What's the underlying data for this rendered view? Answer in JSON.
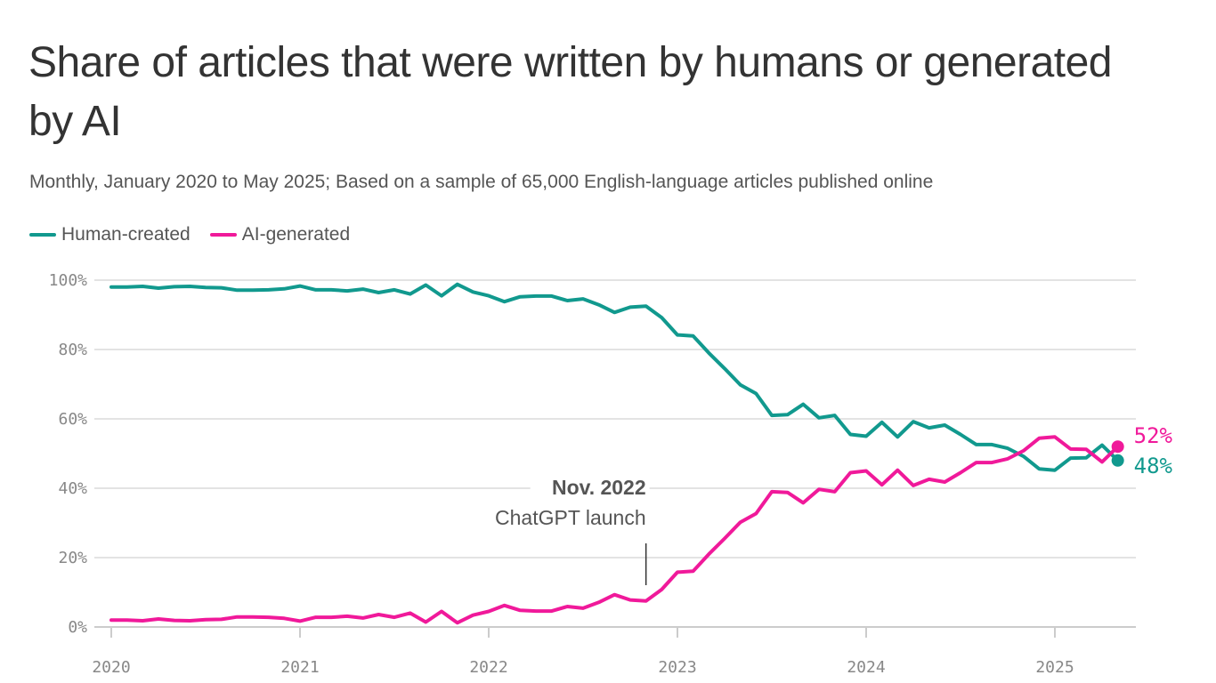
{
  "chart_data": {
    "type": "line",
    "title": "Share of articles that were written by humans or generated by AI",
    "subtitle": "Monthly, January 2020 to May 2025; Based on a sample of 65,000 English-language articles published online",
    "start": "2020-01",
    "end": "2025-05",
    "x_ticks": [
      "2020",
      "2021",
      "2022",
      "2023",
      "2024",
      "2025"
    ],
    "y_ticks": [
      "0%",
      "20%",
      "40%",
      "60%",
      "80%",
      "100%"
    ],
    "ylim": [
      0,
      100
    ],
    "grid": "horizontal",
    "legend_placement": "top-left",
    "series": [
      {
        "name": "Human-created",
        "color": "#11998e",
        "end_label": "48%",
        "values": [
          98,
          98,
          98.2,
          97.7,
          98.1,
          98.2,
          97.9,
          97.8,
          97.1,
          97.1,
          97.2,
          97.5,
          98.3,
          97.2,
          97.2,
          96.9,
          97.4,
          96.4,
          97.2,
          96,
          98.6,
          95.5,
          98.8,
          96.6,
          95.5,
          93.8,
          95.2,
          95.4,
          95.4,
          94.1,
          94.6,
          92.9,
          90.7,
          92.2,
          92.5,
          89.2,
          84.2,
          83.9,
          79,
          74.5,
          69.8,
          67.3,
          61,
          61.2,
          64.2,
          60.3,
          61,
          55.5,
          55,
          59,
          54.8,
          59.2,
          57.4,
          58.2,
          55.5,
          52.6,
          52.6,
          51.5,
          49.2,
          45.6,
          45.2,
          48.7,
          48.8,
          52.4,
          48
        ]
      },
      {
        "name": "AI-generated",
        "color": "#f0199a",
        "end_label": "52%",
        "values": [
          2,
          2,
          1.8,
          2.3,
          1.9,
          1.8,
          2.1,
          2.2,
          2.9,
          2.9,
          2.8,
          2.5,
          1.7,
          2.8,
          2.8,
          3.1,
          2.6,
          3.6,
          2.8,
          4,
          1.4,
          4.5,
          1.2,
          3.4,
          4.5,
          6.2,
          4.8,
          4.6,
          4.6,
          5.9,
          5.4,
          7.1,
          9.3,
          7.8,
          7.5,
          10.8,
          15.8,
          16.1,
          21,
          25.5,
          30.2,
          32.7,
          39,
          38.8,
          35.8,
          39.7,
          39,
          44.5,
          45,
          41,
          45.2,
          40.8,
          42.6,
          41.8,
          44.5,
          47.4,
          47.4,
          48.5,
          50.8,
          54.4,
          54.8,
          51.3,
          51.2,
          47.6,
          52
        ]
      }
    ],
    "annotations": [
      {
        "x": "2022-11",
        "label_bold": "Nov. 2022",
        "label": "ChatGPT launch"
      }
    ]
  }
}
